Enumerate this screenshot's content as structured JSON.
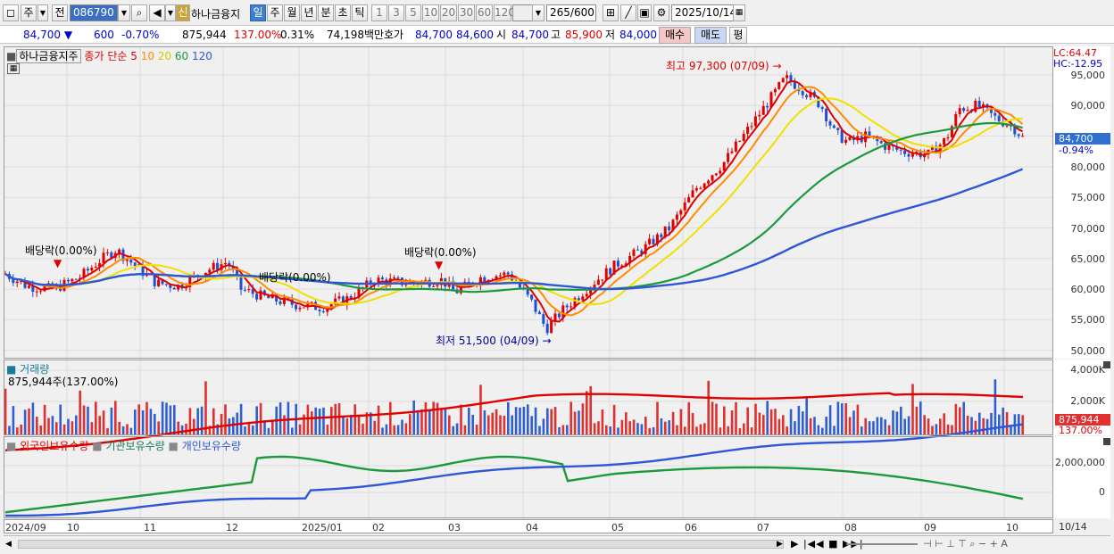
{
  "toolbar": {
    "type_label": "주",
    "prev_label": "전",
    "code": "086790",
    "badge": "신",
    "stock_name": "하나금융지",
    "periods": [
      "일",
      "주",
      "월",
      "년",
      "분",
      "초",
      "틱"
    ],
    "intervals": [
      "1",
      "3",
      "5",
      "10",
      "20",
      "30",
      "60",
      "120"
    ],
    "count": "265",
    "count_total": "/600",
    "date": "2025/10/14"
  },
  "quote": {
    "price": "84,700",
    "change": "600",
    "change_pct": "-0.70%",
    "volume": "875,944",
    "vol_ratio": "137.00%",
    "turnover_pct": "0.31%",
    "amount": "74,198백만",
    "ask_label": "호가",
    "ask": "84,700",
    "bid": "84,600",
    "open_label": "시",
    "open": "84,700",
    "high_label": "고",
    "high": "85,900",
    "low_label": "저",
    "low": "84,000",
    "buy": "매수",
    "sell": "매도",
    "eval": "평"
  },
  "price_panel": {
    "title": "하나금융지주",
    "ma_label": "종가 단순",
    "ma_periods": [
      "5",
      "10",
      "20",
      "60",
      "120"
    ],
    "ma_colors": [
      "#e00000",
      "#ff8c00",
      "#e8e000",
      "#1a9a3a",
      "#2f56d6"
    ],
    "lc": "LC:64.47",
    "hc": "HC:-12.95",
    "y_ticks": [
      "95,000",
      "90,000",
      "85,000",
      "80,000",
      "75,000",
      "70,000",
      "65,000",
      "60,000",
      "55,000",
      "50,000"
    ],
    "current": "84,700",
    "current_pct": "-0.94%",
    "high_note": "최고 97,300 (07/09)",
    "low_note": "최저 51,500 (04/09)",
    "div_notes": [
      "배당락(0.00%)",
      "배당락(0.00%)",
      "배당락(0.00%)"
    ]
  },
  "volume_panel": {
    "title": "거래량",
    "value": "875,944주(137.00%)",
    "y_ticks": [
      "4,000K",
      "2,000K"
    ],
    "current": "875,944",
    "current_pct": "137.00%"
  },
  "holding_panel": {
    "legend": [
      "외국인보유수량",
      "기관보유수량",
      "개인보유수량"
    ],
    "colors": [
      "#e00000",
      "#1a9a3a",
      "#2f56d6"
    ],
    "y_ticks": [
      "2,000,000",
      "0"
    ]
  },
  "x_axis": [
    "2024/09",
    "10",
    "11",
    "12",
    "2025/01",
    "02",
    "03",
    "04",
    "05",
    "06",
    "07",
    "08",
    "09",
    "10",
    "10/14"
  ],
  "chart_data": {
    "type": "line",
    "title": "하나금융지주",
    "ylim": [
      50000,
      97300
    ],
    "high": {
      "value": 97300,
      "date": "07/09"
    },
    "low": {
      "value": 51500,
      "date": "04/09"
    },
    "last_close": 84700
  }
}
